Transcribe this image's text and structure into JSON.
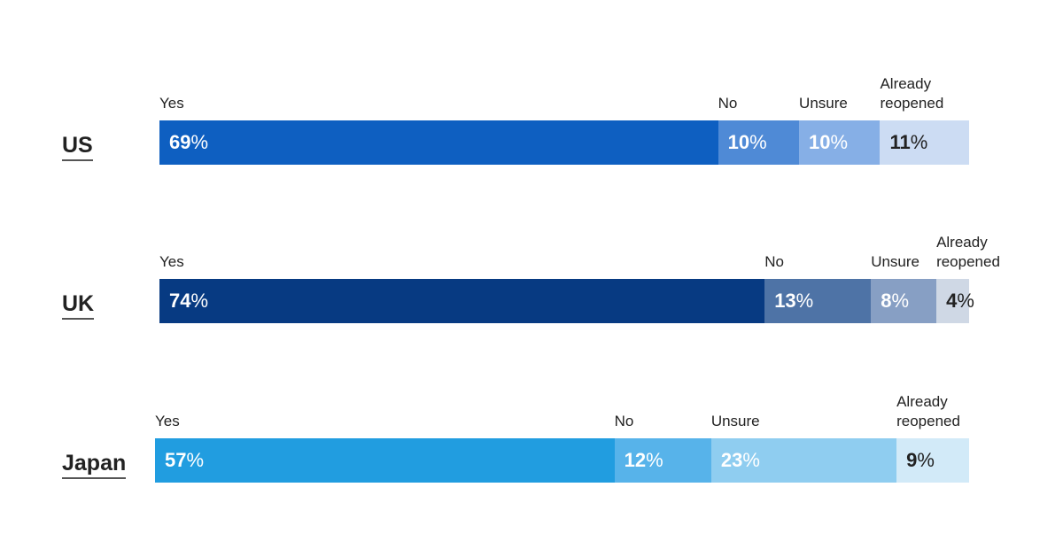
{
  "chart_data": {
    "type": "bar",
    "orientation": "horizontal-stacked",
    "title": "",
    "categories": [
      "Yes",
      "No",
      "Unsure",
      "Already reopened"
    ],
    "unit": "%",
    "xlim": [
      0,
      100
    ],
    "grid": false,
    "legend": "none",
    "rows": [
      {
        "name": "US",
        "values": [
          69,
          10,
          10,
          11
        ],
        "labels": [
          "Yes",
          "No",
          "Unsure",
          "Already reopened"
        ],
        "colors": [
          "#0e5fc1",
          "#4f8ad6",
          "#86afe6",
          "#ccdcf3"
        ],
        "text_colors": [
          "#ffffff",
          "#ffffff",
          "#ffffff",
          "#222222"
        ]
      },
      {
        "name": "UK",
        "values": [
          74,
          13,
          8,
          4
        ],
        "labels": [
          "Yes",
          "No",
          "Unsure",
          "Already reopened"
        ],
        "colors": [
          "#073a82",
          "#4e73a6",
          "#879fc4",
          "#cfd8e5"
        ],
        "text_colors": [
          "#ffffff",
          "#ffffff",
          "#ffffff",
          "#222222"
        ]
      },
      {
        "name": "Japan",
        "values": [
          57,
          12,
          23,
          9
        ],
        "labels": [
          "Yes",
          "No",
          "Unsure",
          "Already reopened"
        ],
        "colors": [
          "#219de0",
          "#57b3ea",
          "#8fcdf0",
          "#d2eaf8"
        ],
        "text_colors": [
          "#ffffff",
          "#ffffff",
          "#ffffff",
          "#222222"
        ]
      }
    ]
  }
}
